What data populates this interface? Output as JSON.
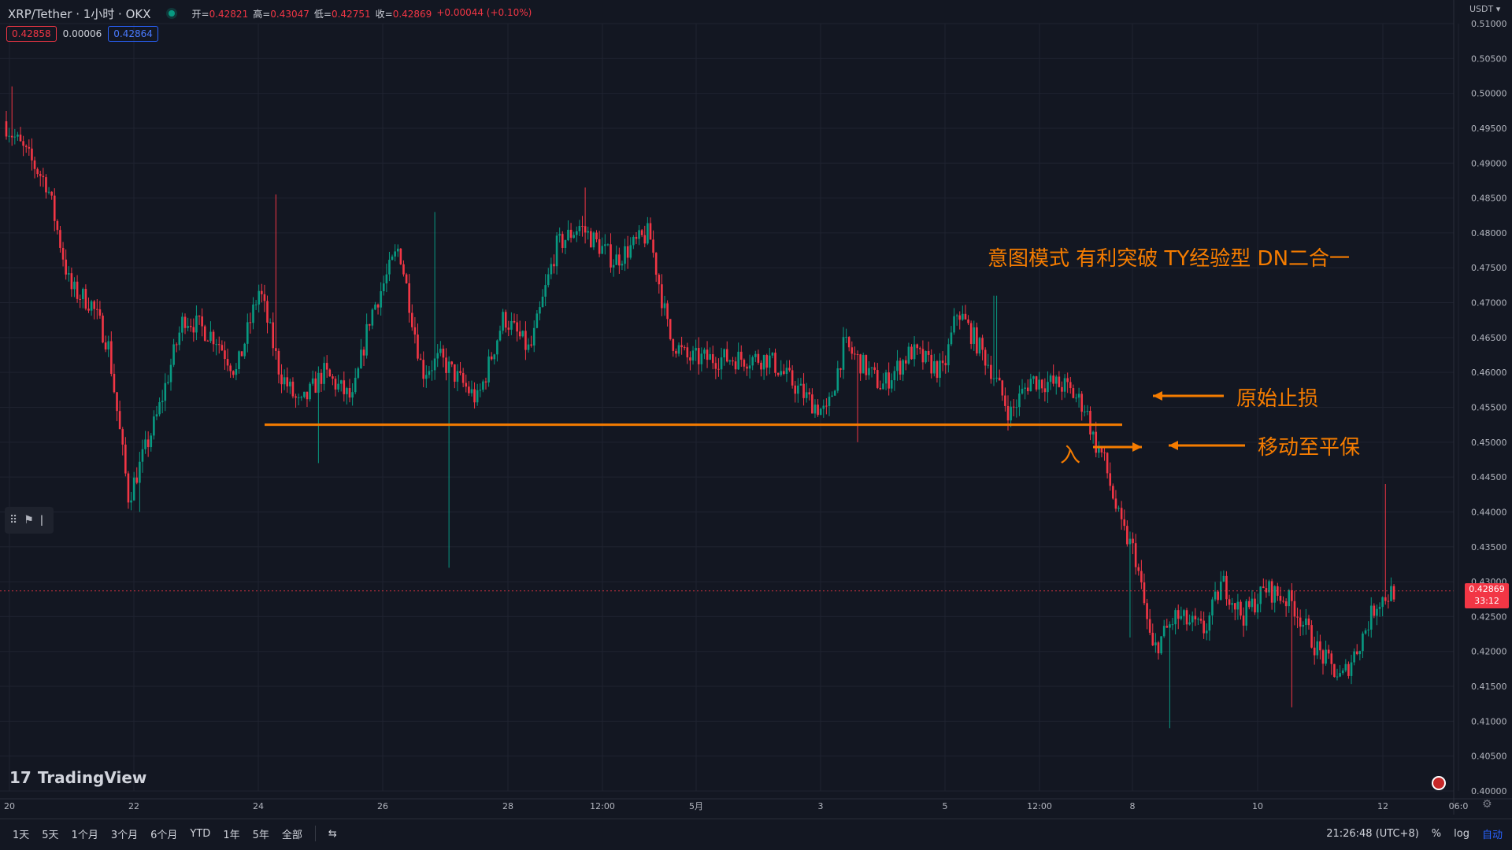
{
  "header": {
    "symbol": "XRP/Tether · 1小时 · OKX",
    "ohlc": [
      {
        "k": "开",
        "v": "0.42821"
      },
      {
        "k": "高",
        "v": "0.43047"
      },
      {
        "k": "低",
        "v": "0.42751"
      },
      {
        "k": "收",
        "v": "0.42869"
      }
    ],
    "change": "+0.00044 (+0.10%)",
    "sell_price": "0.42858",
    "spread": "0.00006",
    "buy_price": "0.42864",
    "currency": "USDT"
  },
  "last_price": {
    "price": "0.42869",
    "countdown": "33:12"
  },
  "colors": {
    "up": "#089981",
    "down": "#f23645",
    "annotation": "#f57c00",
    "background": "#131722"
  },
  "annotations": {
    "pattern_title": "意图模式 有利突破 TY经验型 DN二合一",
    "original_stop": "原始止损",
    "move_to_breakeven": "移动至平保",
    "entry": "入"
  },
  "logo": {
    "text": "TradingView"
  },
  "bottom_bar": {
    "timeframes": [
      "1天",
      "5天",
      "1个月",
      "3个月",
      "6个月",
      "YTD",
      "1年",
      "5年",
      "全部"
    ],
    "clock": "21:26:48 (UTC+8)",
    "percent": "%",
    "log": "log",
    "auto": "自动"
  },
  "chart_data": {
    "type": "candlestick",
    "timeframe": "1小时",
    "y_axis": {
      "ticks": [
        "0.51000",
        "0.50500",
        "0.50000",
        "0.49500",
        "0.49000",
        "0.48500",
        "0.48000",
        "0.47500",
        "0.47000",
        "0.46500",
        "0.46000",
        "0.45500",
        "0.45000",
        "0.44500",
        "0.44000",
        "0.43500",
        "0.43000",
        "0.42500",
        "0.42000",
        "0.41500",
        "0.41000",
        "0.40500",
        "0.40000"
      ],
      "range": [
        0.4,
        0.51
      ]
    },
    "x_axis": {
      "ticks": [
        "20",
        "22",
        "24",
        "26",
        "28",
        "12:00",
        "5月",
        "3",
        "5",
        "12:00",
        "8",
        "10",
        "12",
        "06:0"
      ]
    },
    "support_level": 0.4525,
    "entry_price": 0.4495,
    "stop_price": 0.4565,
    "price_path": [
      {
        "t": 0,
        "p": 0.496
      },
      {
        "t": 1.5,
        "p": 0.487
      },
      {
        "t": 2.3,
        "p": 0.472
      },
      {
        "t": 3.0,
        "p": 0.47
      },
      {
        "t": 3.6,
        "p": 0.464
      },
      {
        "t": 4.3,
        "p": 0.442
      },
      {
        "t": 5.3,
        "p": 0.454
      },
      {
        "t": 6.2,
        "p": 0.468
      },
      {
        "t": 7.3,
        "p": 0.465
      },
      {
        "t": 8.0,
        "p": 0.46
      },
      {
        "t": 8.8,
        "p": 0.472
      },
      {
        "t": 9.5,
        "p": 0.46
      },
      {
        "t": 10.2,
        "p": 0.455
      },
      {
        "t": 11.0,
        "p": 0.46
      },
      {
        "t": 12.0,
        "p": 0.456
      },
      {
        "t": 12.6,
        "p": 0.468
      },
      {
        "t": 13.6,
        "p": 0.478
      },
      {
        "t": 14.4,
        "p": 0.46
      },
      {
        "t": 15.0,
        "p": 0.462
      },
      {
        "t": 16.3,
        "p": 0.456
      },
      {
        "t": 17.2,
        "p": 0.468
      },
      {
        "t": 18.1,
        "p": 0.463
      },
      {
        "t": 19.0,
        "p": 0.478
      },
      {
        "t": 19.8,
        "p": 0.481
      },
      {
        "t": 21.0,
        "p": 0.476
      },
      {
        "t": 22.2,
        "p": 0.48
      },
      {
        "t": 22.9,
        "p": 0.465
      },
      {
        "t": 23.5,
        "p": 0.462
      },
      {
        "t": 25.0,
        "p": 0.462
      },
      {
        "t": 26.3,
        "p": 0.462
      },
      {
        "t": 27.7,
        "p": 0.456
      },
      {
        "t": 28.3,
        "p": 0.454
      },
      {
        "t": 28.9,
        "p": 0.464
      },
      {
        "t": 30.2,
        "p": 0.458
      },
      {
        "t": 31.2,
        "p": 0.463
      },
      {
        "t": 32.3,
        "p": 0.46
      },
      {
        "t": 32.8,
        "p": 0.469
      },
      {
        "t": 33.9,
        "p": 0.461
      },
      {
        "t": 34.6,
        "p": 0.454
      },
      {
        "t": 35.3,
        "p": 0.459
      },
      {
        "t": 36.5,
        "p": 0.458
      },
      {
        "t": 37.2,
        "p": 0.455
      },
      {
        "t": 37.5,
        "p": 0.45
      },
      {
        "t": 37.8,
        "p": 0.448
      },
      {
        "t": 38.4,
        "p": 0.438
      },
      {
        "t": 38.9,
        "p": 0.434
      },
      {
        "t": 39.5,
        "p": 0.42
      },
      {
        "t": 40.3,
        "p": 0.425
      },
      {
        "t": 41.3,
        "p": 0.423
      },
      {
        "t": 41.9,
        "p": 0.43
      },
      {
        "t": 42.6,
        "p": 0.425
      },
      {
        "t": 43.4,
        "p": 0.429
      },
      {
        "t": 44.3,
        "p": 0.427
      },
      {
        "t": 45.2,
        "p": 0.42
      },
      {
        "t": 46.0,
        "p": 0.416
      },
      {
        "t": 46.6,
        "p": 0.421
      },
      {
        "t": 47.2,
        "p": 0.427
      },
      {
        "t": 47.8,
        "p": 0.4287
      }
    ],
    "spikes": [
      {
        "t": 0.2,
        "high": 0.501
      },
      {
        "t": 4.6,
        "low": 0.44
      },
      {
        "t": 9.3,
        "high": 0.4855
      },
      {
        "t": 10.7,
        "low": 0.447
      },
      {
        "t": 14.7,
        "high": 0.483
      },
      {
        "t": 15.2,
        "low": 0.432
      },
      {
        "t": 19.9,
        "high": 0.4865
      },
      {
        "t": 29.3,
        "low": 0.45
      },
      {
        "t": 34.0,
        "high": 0.471
      },
      {
        "t": 38.6,
        "low": 0.422
      },
      {
        "t": 40.0,
        "low": 0.409
      },
      {
        "t": 44.2,
        "low": 0.412
      },
      {
        "t": 47.4,
        "high": 0.444
      }
    ]
  }
}
